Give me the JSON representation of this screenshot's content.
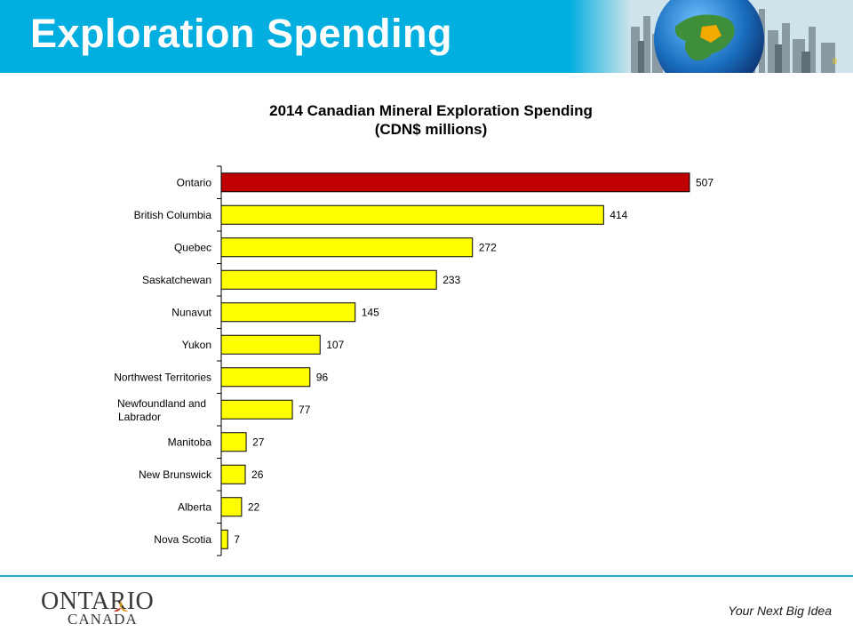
{
  "header": {
    "title": "Exploration Spending",
    "background_color": "#00aee0",
    "image_description_icon": "globe-cityscape-icon"
  },
  "slide_number": "8",
  "chart_data": {
    "type": "bar",
    "orientation": "horizontal",
    "title": "2014 Canadian Mineral Exploration Spending",
    "subtitle": "(CDN$ millions)",
    "categories": [
      "Ontario",
      "British Columbia",
      "Quebec",
      "Saskatchewan",
      "Nunavut",
      "Yukon",
      "Northwest Territories",
      "Newfoundland and Labrador",
      "Manitoba",
      "New Brunswick",
      "Alberta",
      "Nova Scotia"
    ],
    "values": [
      507,
      414,
      272,
      233,
      145,
      107,
      96,
      77,
      27,
      26,
      22,
      7
    ],
    "data_labels": [
      "507",
      "414",
      "272",
      "233",
      "145",
      "107",
      "96",
      "77",
      "27",
      "26",
      "22",
      "7"
    ],
    "highlight_category": "Ontario",
    "colors": {
      "highlight": "#c00000",
      "default": "#ffff00",
      "bar_outline": "#000000"
    },
    "xlim": [
      0,
      507
    ],
    "grid": false,
    "legend": "none"
  },
  "footer": {
    "logo_top": "ONTARIO",
    "logo_bottom": "CANADA",
    "logo_icon": "trillium-icon",
    "tagline": "Your Next Big Idea",
    "line_color": "#2aa6cf"
  }
}
